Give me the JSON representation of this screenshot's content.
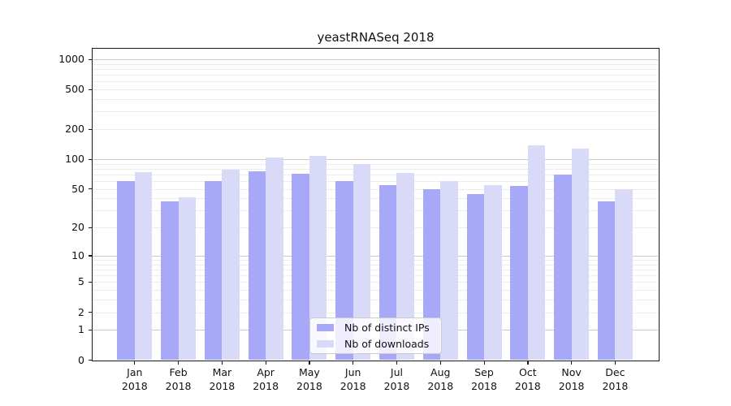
{
  "chart_data": {
    "type": "bar",
    "title": "yeastRNASeq 2018",
    "categories": [
      "Jan 2018",
      "Feb 2018",
      "Mar 2018",
      "Apr 2018",
      "May 2018",
      "Jun 2018",
      "Jul 2018",
      "Aug 2018",
      "Sep 2018",
      "Oct 2018",
      "Nov 2018",
      "Dec 2018"
    ],
    "series": [
      {
        "name": "Nb of distinct IPs",
        "color": "#a8a8f8",
        "values": [
          60,
          37,
          60,
          75,
          71,
          60,
          55,
          50,
          44,
          54,
          70,
          37
        ]
      },
      {
        "name": "Nb of downloads",
        "color": "#d9d9f8",
        "values": [
          74,
          41,
          78,
          103,
          107,
          89,
          73,
          60,
          55,
          137,
          127,
          50
        ]
      }
    ],
    "xlabel": "",
    "ylabel": "",
    "y_scale": "log1p",
    "y_ticks": [
      0,
      1,
      2,
      5,
      10,
      20,
      50,
      100,
      200,
      500,
      1000
    ],
    "ylim": [
      0,
      1276
    ],
    "grid": "horizontal",
    "legend_position": "lower-center",
    "colors": {
      "major_grid": "#c8c8c8",
      "minor_grid": "#ececec",
      "spine": "#1a1a1a"
    }
  }
}
